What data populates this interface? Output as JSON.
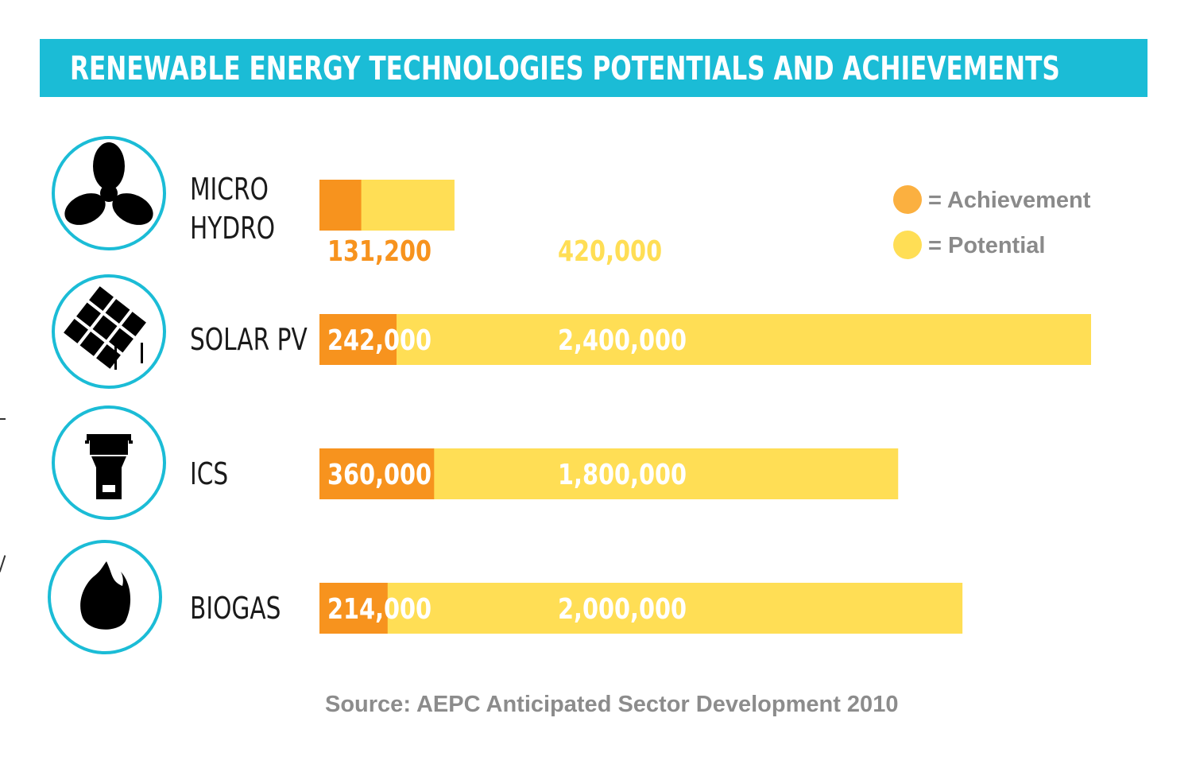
{
  "title": "RENEWABLE ENERGY TECHNOLOGIES POTENTIALS AND ACHIEVEMENTS",
  "source": "Source: AEPC Anticipated Sector Development 2010",
  "colors": {
    "header": "#1bbcd6",
    "achievement": "#f7931e",
    "potential": "#ffde55",
    "achievement_text_outside": "#f7931e",
    "potential_text_outside": "#ffde55",
    "icon_ring": "#1bbcd6",
    "icon_fill": "#000000"
  },
  "legend": {
    "achievement_label": "= Achievement",
    "potential_label": "= Potential"
  },
  "chart_data": {
    "type": "bar",
    "orientation": "horizontal",
    "stacked_overlay": true,
    "title": "RENEWABLE ENERGY TECHNOLOGIES POTENTIALS AND ACHIEVEMENTS",
    "categories": [
      {
        "key": "micro-hydro",
        "lines": [
          "MICRO",
          "HYDRO"
        ],
        "icon": "fan-icon"
      },
      {
        "key": "solar-pv",
        "lines": [
          "SOLAR PV"
        ],
        "icon": "solar-panel-icon"
      },
      {
        "key": "ics",
        "lines": [
          "ICS"
        ],
        "icon": "cookstove-icon"
      },
      {
        "key": "biogas",
        "lines": [
          "BIOGAS"
        ],
        "icon": "flame-icon"
      }
    ],
    "series": [
      {
        "name": "Achievement",
        "values": [
          131200,
          242000,
          360000,
          214000
        ],
        "labels": [
          "131,200",
          "242,000",
          "360,000",
          "214,000"
        ]
      },
      {
        "name": "Potential",
        "values": [
          420000,
          2400000,
          1800000,
          2000000
        ],
        "labels": [
          "420,000",
          "2,400,000",
          "1,800,000",
          "2,000,000"
        ]
      }
    ],
    "xlim": [
      0,
      2400000
    ],
    "legend_position": "top-right",
    "grid": false
  }
}
